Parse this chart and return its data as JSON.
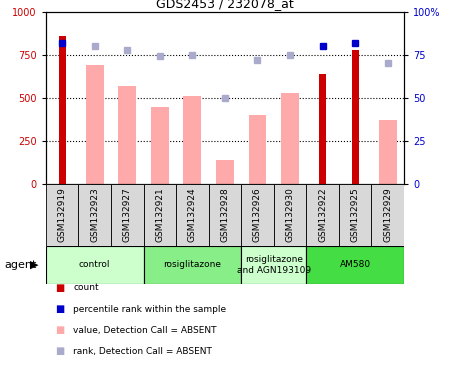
{
  "title": "GDS2453 / 232078_at",
  "samples": [
    "GSM132919",
    "GSM132923",
    "GSM132927",
    "GSM132921",
    "GSM132924",
    "GSM132928",
    "GSM132926",
    "GSM132930",
    "GSM132922",
    "GSM132925",
    "GSM132929"
  ],
  "count_values": [
    860,
    null,
    null,
    null,
    null,
    null,
    null,
    null,
    640,
    780,
    null
  ],
  "value_absent": [
    null,
    690,
    570,
    450,
    510,
    140,
    400,
    530,
    null,
    null,
    370
  ],
  "rank_absent_pct": [
    null,
    80,
    78,
    74,
    75,
    50,
    72,
    75,
    null,
    null,
    70
  ],
  "percentile_present_pct": [
    82,
    null,
    null,
    null,
    null,
    null,
    null,
    null,
    80,
    82,
    null
  ],
  "count_color": "#cc0000",
  "value_absent_color": "#ffaaaa",
  "rank_absent_color": "#aaaacc",
  "percentile_color": "#0000cc",
  "ylim": [
    0,
    1000
  ],
  "y2lim": [
    0,
    100
  ],
  "yticks": [
    0,
    250,
    500,
    750,
    1000
  ],
  "y2ticks": [
    0,
    25,
    50,
    75,
    100
  ],
  "group_spans": [
    {
      "start": 0,
      "end": 2,
      "label": "control",
      "color": "#ccffcc"
    },
    {
      "start": 3,
      "end": 5,
      "label": "rosiglitazone",
      "color": "#88ee88"
    },
    {
      "start": 6,
      "end": 7,
      "label": "rosiglitazone\nand AGN193109",
      "color": "#ccffcc"
    },
    {
      "start": 8,
      "end": 10,
      "label": "AM580",
      "color": "#44dd44"
    }
  ],
  "agent_label": "agent",
  "legend_items": [
    {
      "label": "count",
      "color": "#cc0000"
    },
    {
      "label": "percentile rank within the sample",
      "color": "#0000cc"
    },
    {
      "label": "value, Detection Call = ABSENT",
      "color": "#ffaaaa"
    },
    {
      "label": "rank, Detection Call = ABSENT",
      "color": "#aaaacc"
    }
  ]
}
